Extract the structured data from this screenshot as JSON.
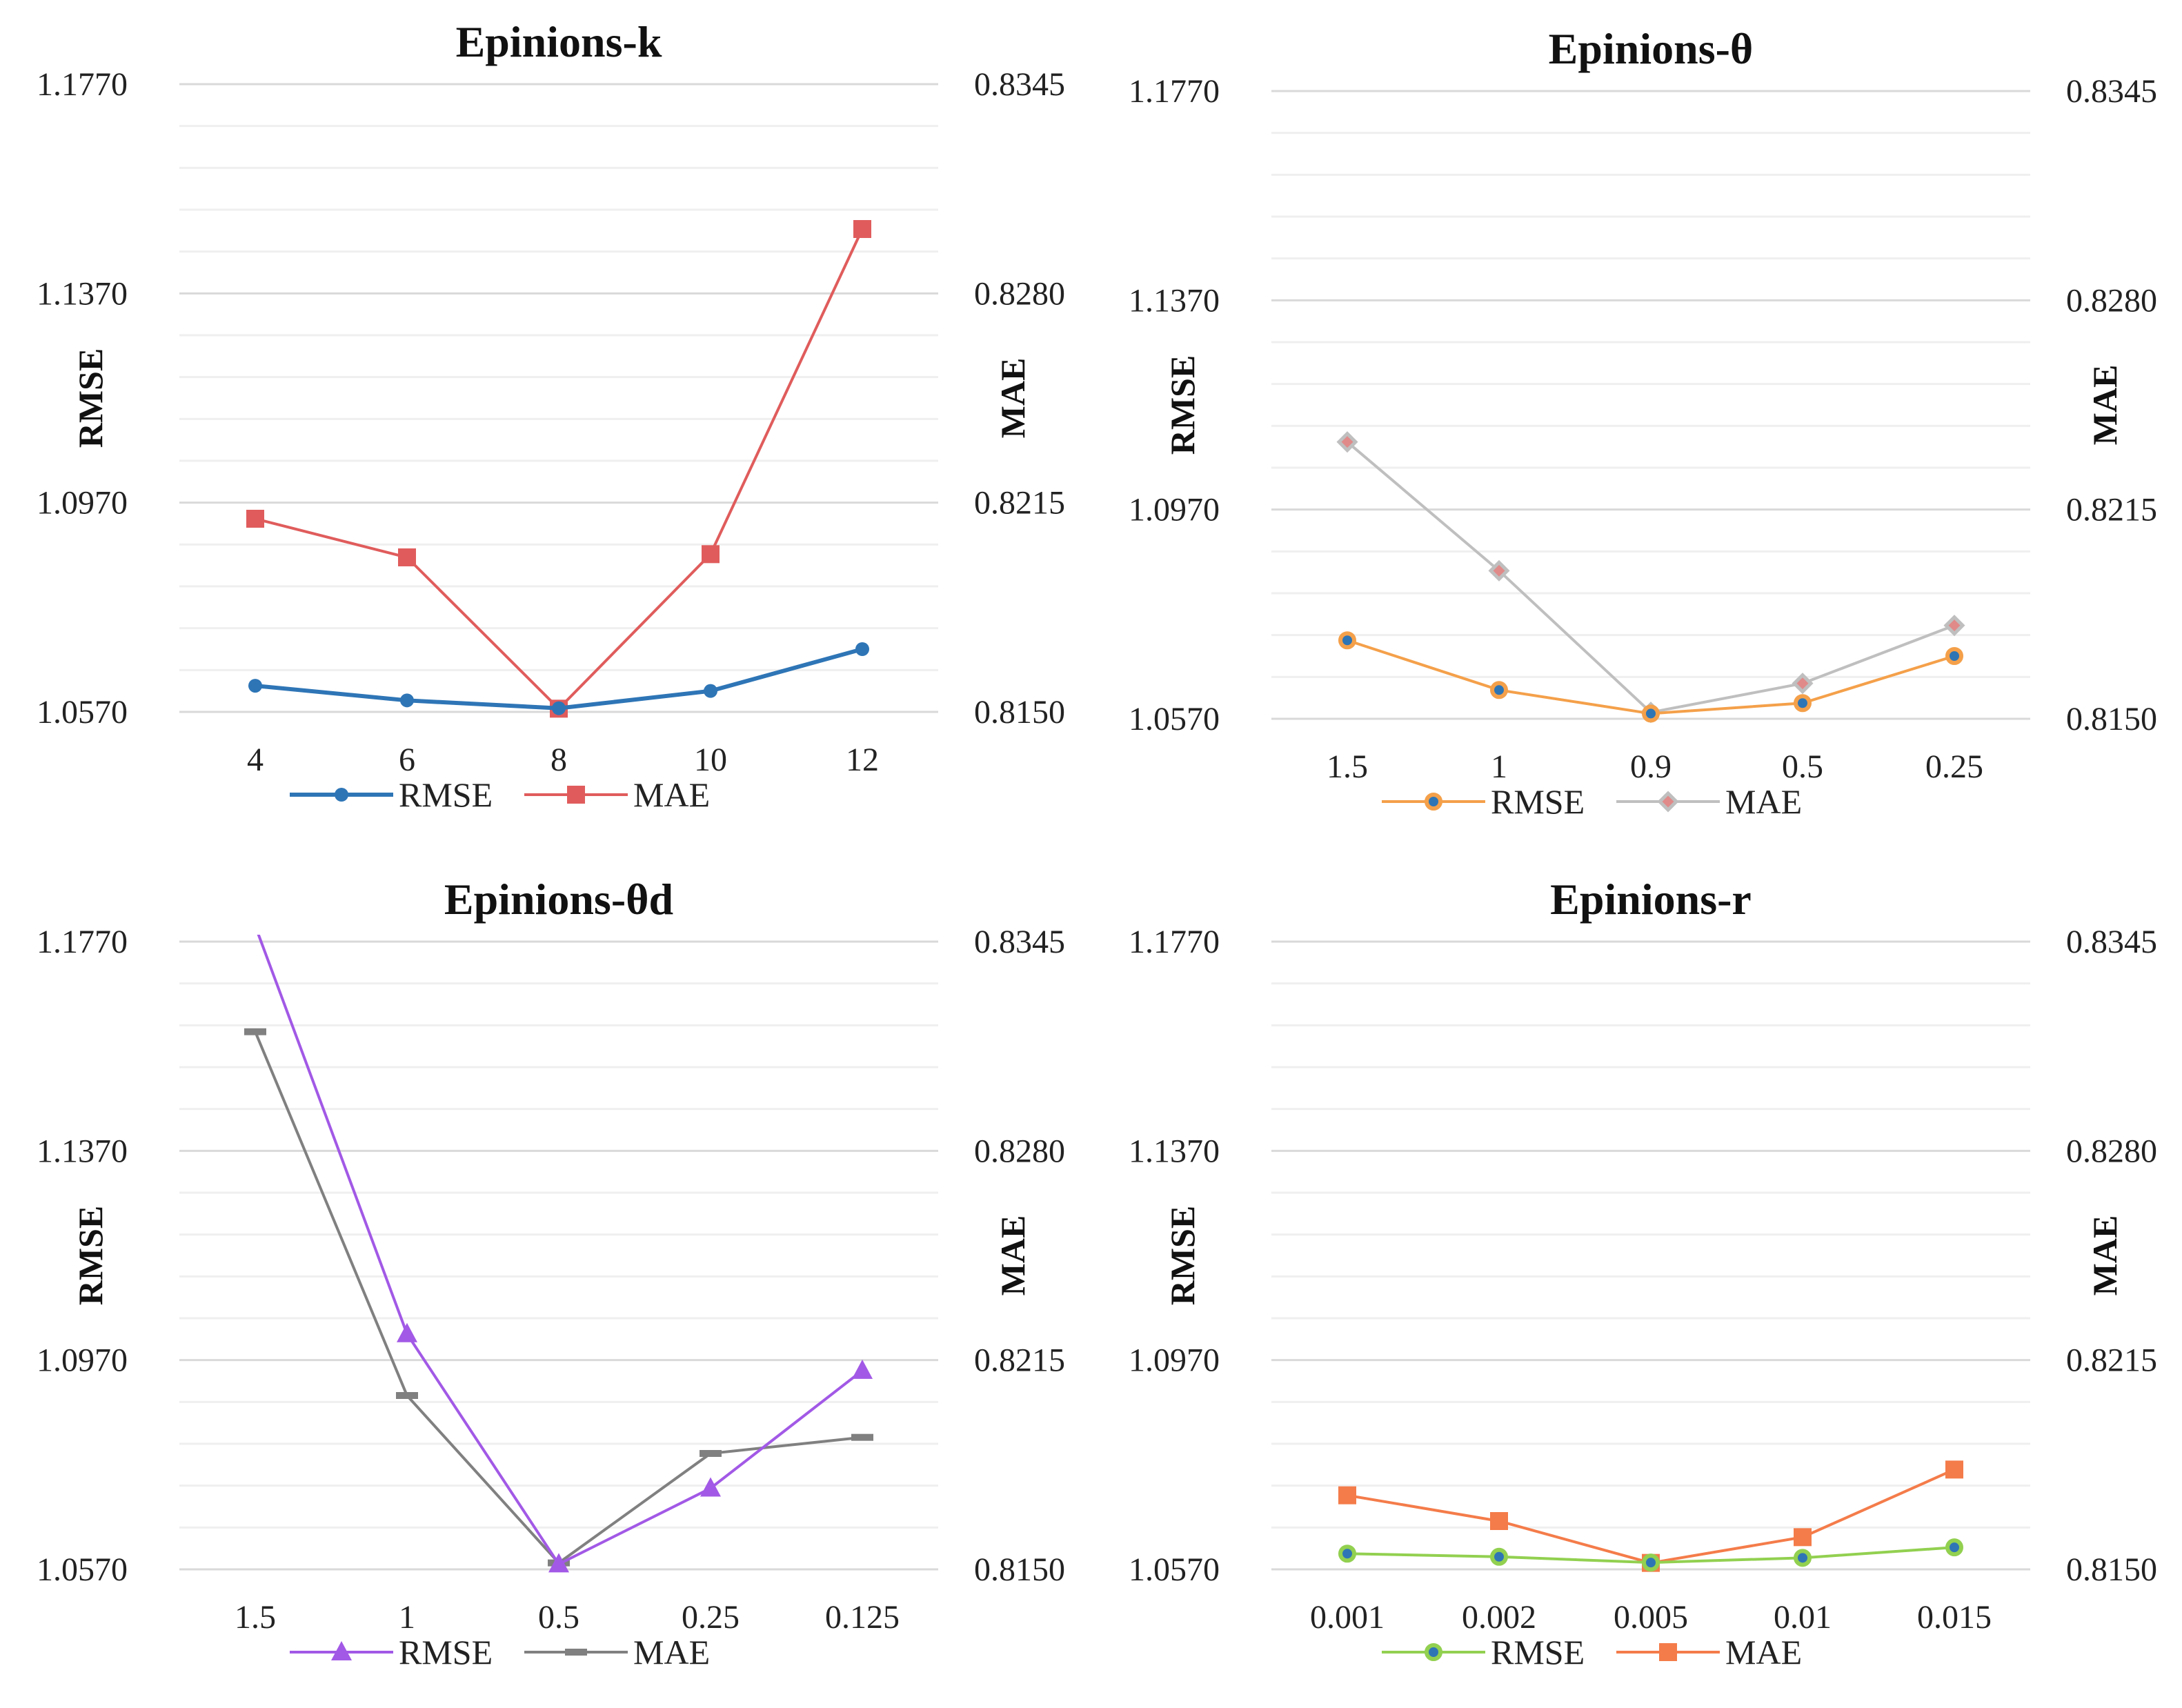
{
  "chart_data": [
    {
      "type": "line",
      "title": "Epinions-k",
      "categories": [
        "4",
        "6",
        "8",
        "10",
        "12"
      ],
      "ylabel": "RMSE",
      "y2label": "MAE",
      "yticks": [
        "1.0570",
        "1.0970",
        "1.1370",
        "1.1770"
      ],
      "y2ticks": [
        "0.8150",
        "0.8215",
        "0.8280",
        "0.8345"
      ],
      "ylim": [
        1.057,
        1.177
      ],
      "y2lim": [
        0.815,
        0.8345
      ],
      "series": [
        {
          "name": "RMSE",
          "axis": "left",
          "color": "#2e75b6",
          "marker": "circle",
          "values": [
            1.062,
            1.0592,
            1.0577,
            1.061,
            1.069
          ]
        },
        {
          "name": "MAE",
          "axis": "right",
          "color": "#e05c5c",
          "marker": "square",
          "values": [
            0.821,
            0.8198,
            0.8151,
            0.8199,
            0.83
          ]
        }
      ]
    },
    {
      "type": "line",
      "title": "Epinions-θ",
      "categories": [
        "1.5",
        "1",
        "0.9",
        "0.5",
        "0.25"
      ],
      "ylabel": "RMSE",
      "y2label": "MAE",
      "yticks": [
        "1.0570",
        "1.0970",
        "1.1370",
        "1.1770"
      ],
      "y2ticks": [
        "0.8150",
        "0.8215",
        "0.8280",
        "0.8345"
      ],
      "ylim": [
        1.057,
        1.177
      ],
      "y2lim": [
        0.815,
        0.8345
      ],
      "series": [
        {
          "name": "RMSE",
          "axis": "left",
          "color": "#f4a04a",
          "marker": "ring",
          "values": [
            1.072,
            1.0625,
            1.058,
            1.06,
            1.069
          ]
        },
        {
          "name": "MAE",
          "axis": "right",
          "color": "#bfbfbf",
          "marker": "diamond",
          "values": [
            0.8236,
            0.8196,
            0.8152,
            0.8161,
            0.8179
          ]
        }
      ]
    },
    {
      "type": "line",
      "title": "Epinions-θd",
      "categories": [
        "1.5",
        "1",
        "0.5",
        "0.25",
        "0.125"
      ],
      "ylabel": "RMSE",
      "y2label": "MAE",
      "yticks": [
        "1.0570",
        "1.0970",
        "1.1370",
        "1.1770"
      ],
      "y2ticks": [
        "0.8150",
        "0.8215",
        "0.8280",
        "0.8345"
      ],
      "ylim": [
        1.057,
        1.177
      ],
      "y2lim": [
        0.815,
        0.8345
      ],
      "series": [
        {
          "name": "RMSE",
          "axis": "left",
          "color": "#a259e6",
          "marker": "triangle",
          "values": [
            1.18,
            1.102,
            1.058,
            1.0725,
            1.095
          ]
        },
        {
          "name": "MAE",
          "axis": "right",
          "color": "#808080",
          "marker": "dash",
          "values": [
            0.8317,
            0.8204,
            0.8152,
            0.8186,
            0.8191
          ]
        }
      ]
    },
    {
      "type": "line",
      "title": "Epinions-r",
      "categories": [
        "0.001",
        "0.002",
        "0.005",
        "0.01",
        "0.015"
      ],
      "ylabel": "RMSE",
      "y2label": "MAE",
      "yticks": [
        "1.0570",
        "1.0970",
        "1.1370",
        "1.1770"
      ],
      "y2ticks": [
        "0.8150",
        "0.8215",
        "0.8280",
        "0.8345"
      ],
      "ylim": [
        1.057,
        1.177
      ],
      "y2lim": [
        0.815,
        0.8345
      ],
      "series": [
        {
          "name": "RMSE",
          "axis": "left",
          "color": "#92d050",
          "marker": "ring",
          "values": [
            1.06,
            1.0594,
            1.0583,
            1.0592,
            1.0612
          ]
        },
        {
          "name": "MAE",
          "axis": "right",
          "color": "#f47c4a",
          "marker": "square",
          "values": [
            0.8173,
            0.8165,
            0.8152,
            0.816,
            0.8181
          ]
        }
      ]
    }
  ]
}
